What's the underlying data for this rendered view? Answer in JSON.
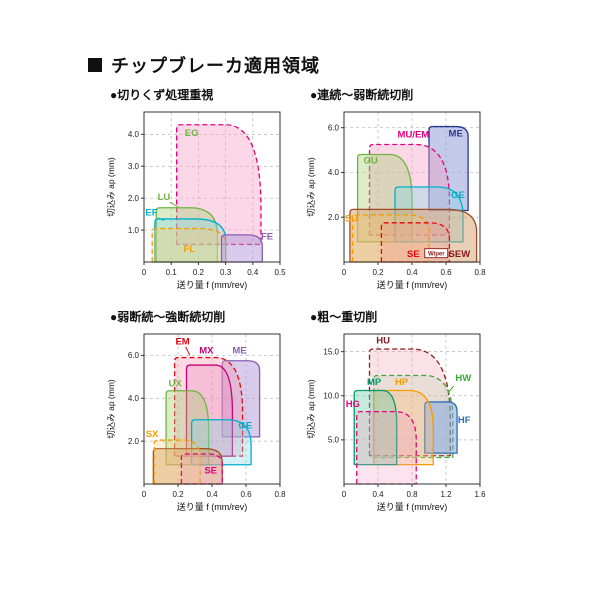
{
  "title": "チップブレーカ適用領域",
  "chart_data": [
    {
      "type": "area",
      "subtitle": "●切りくず処理重視",
      "xlabel": "送り量 f (mm/rev)",
      "ylabel": "切込み ap (mm)",
      "xlim": [
        0,
        0.5
      ],
      "ylim": [
        0,
        4.7
      ],
      "x_ticks": [
        0,
        0.1,
        0.2,
        0.3,
        0.4,
        0.5
      ],
      "y_ticks": [
        1.0,
        2.0,
        3.0,
        4.0
      ],
      "grid": "dashed",
      "regions": [
        {
          "name": "EG",
          "label": "EG",
          "label_color": "#6fb43f",
          "label_pos": [
            0.15,
            3.95
          ],
          "stroke": "#e5007d",
          "dash": true,
          "fill": "rgba(244,154,194,0.40)",
          "x0": 0.12,
          "x1": 0.43,
          "y0": 0.55,
          "y1": 4.3,
          "trx": 0.13,
          "try": 2.6
        },
        {
          "name": "LU",
          "label": "LU",
          "label_color": "#6fb43f",
          "label_pos": [
            0.05,
            1.95
          ],
          "leader": [
            [
              0.095,
              1.88
            ],
            [
              0.125,
              1.72
            ]
          ],
          "stroke": "#6fb43f",
          "dash": false,
          "fill": "rgba(168,208,120,0.40)",
          "x0": 0.045,
          "x1": 0.27,
          "y0": 0,
          "y1": 1.7,
          "trx": 0.1,
          "try": 0.85
        },
        {
          "name": "EF",
          "label": "EF",
          "label_color": "#00b0c8",
          "label_pos": [
            0.005,
            1.45
          ],
          "leader": [
            [
              0.05,
              1.38
            ],
            [
              0.075,
              1.3
            ]
          ],
          "stroke": "#00b0c8",
          "dash": false,
          "fill": "rgba(130,215,228,0.35)",
          "x0": 0.04,
          "x1": 0.3,
          "y0": 0,
          "y1": 1.35,
          "trx": 0.11,
          "try": 0.65
        },
        {
          "name": "FL",
          "label": "FL",
          "label_color": "#f59c00",
          "label_pos": [
            0.145,
            0.32
          ],
          "stroke": "#f59c00",
          "dash": true,
          "fill": "rgba(252,205,120,0.35)",
          "x0": 0.03,
          "x1": 0.3,
          "y0": 0,
          "y1": 1.05,
          "trx": 0.1,
          "try": 0.5
        },
        {
          "name": "FE",
          "label": "FE",
          "label_color": "#8a5fb0",
          "label_pos": [
            0.43,
            0.7
          ],
          "stroke": "#8a5fb0",
          "dash": false,
          "fill": "rgba(178,152,216,0.50)",
          "x0": 0.285,
          "x1": 0.435,
          "y0": 0,
          "y1": 0.85,
          "trx": 0.055,
          "try": 0.35
        }
      ]
    },
    {
      "type": "area",
      "subtitle": "●連続～弱断続切削",
      "xlabel": "送り量 f (mm/rev)",
      "ylabel": "切込み ap (mm)",
      "xlim": [
        0,
        0.8
      ],
      "ylim": [
        0,
        6.7
      ],
      "x_ticks": [
        0,
        0.2,
        0.4,
        0.6,
        0.8
      ],
      "y_ticks": [
        2.0,
        4.0,
        6.0
      ],
      "grid": "dashed",
      "regions": [
        {
          "name": "ME",
          "label": "ME",
          "label_color": "#2b3990",
          "label_pos": [
            0.615,
            5.6
          ],
          "stroke": "#2b3990",
          "dash": false,
          "fill": "rgba(148,158,216,0.55)",
          "x0": 0.5,
          "x1": 0.73,
          "y0": 2.3,
          "y1": 6.05,
          "trx": 0.07,
          "try": 0.45
        },
        {
          "name": "MU/EM",
          "label": "MU/EM",
          "label_color": "#e5007d",
          "label_pos": [
            0.315,
            5.55
          ],
          "stroke": "#e5007d",
          "dash": true,
          "fill": "rgba(244,154,194,0.40)",
          "x0": 0.15,
          "x1": 0.62,
          "y0": 1.2,
          "y1": 5.25,
          "trx": 0.2,
          "try": 2.5
        },
        {
          "name": "GU",
          "label": "GU",
          "label_color": "#6fb43f",
          "label_pos": [
            0.115,
            4.4
          ],
          "stroke": "#6fb43f",
          "dash": false,
          "fill": "rgba(168,208,120,0.40)",
          "x0": 0.08,
          "x1": 0.4,
          "y0": 0.9,
          "y1": 4.8,
          "trx": 0.13,
          "try": 2.1
        },
        {
          "name": "GE",
          "label": "GE",
          "label_color": "#00b0c8",
          "label_pos": [
            0.63,
            2.85
          ],
          "stroke": "#00b0c8",
          "dash": false,
          "fill": "rgba(130,215,228,0.35)",
          "x0": 0.3,
          "x1": 0.7,
          "y0": 0.9,
          "y1": 3.35,
          "trx": 0.15,
          "try": 1.3
        },
        {
          "name": "SEW",
          "label": "SEW",
          "label_color": "#8b1a1a",
          "label_pos": [
            0.615,
            0.22
          ],
          "badge": {
            "text": "Wiper",
            "x": 0.475,
            "y": 0.26
          },
          "stroke": "#a14b23",
          "dash": false,
          "fill": "rgba(212,160,110,0.50)",
          "x0": 0.035,
          "x1": 0.78,
          "y0": 0,
          "y1": 2.35,
          "trx": 0.17,
          "try": 1.0
        },
        {
          "name": "SU",
          "label": "SU",
          "label_color": "#f59c00",
          "label_pos": [
            0.005,
            1.8
          ],
          "stroke": "#f59c00",
          "dash": true,
          "fill": "rgba(252,205,120,0.30)",
          "x0": 0.05,
          "x1": 0.5,
          "y0": 0,
          "y1": 2.1,
          "trx": 0.12,
          "try": 0.8
        },
        {
          "name": "SE",
          "label": "SE",
          "label_color": "#e30613",
          "label_pos": [
            0.37,
            0.22
          ],
          "stroke": "#e30613",
          "dash": true,
          "fill": "rgba(245,140,140,0.25)",
          "x0": 0.22,
          "x1": 0.62,
          "y0": 0,
          "y1": 1.75,
          "trx": 0.12,
          "try": 0.7
        }
      ]
    },
    {
      "type": "area",
      "subtitle": "●弱断続～強断続切削",
      "xlabel": "送り量 f (mm/rev)",
      "ylabel": "切込み ap (mm)",
      "xlim": [
        0,
        0.8
      ],
      "ylim": [
        0,
        7.0
      ],
      "x_ticks": [
        0,
        0.2,
        0.4,
        0.6,
        0.8
      ],
      "y_ticks": [
        2.0,
        4.0,
        6.0
      ],
      "grid": "dashed",
      "regions": [
        {
          "name": "ME",
          "label": "ME",
          "label_color": "#8a5fb0",
          "label_pos": [
            0.52,
            6.1
          ],
          "stroke": "#8a5fb0",
          "dash": false,
          "fill": "rgba(178,152,216,0.50)",
          "x0": 0.46,
          "x1": 0.68,
          "y0": 2.2,
          "y1": 5.75,
          "trx": 0.07,
          "try": 0.45
        },
        {
          "name": "EM",
          "label": "EM",
          "label_color": "#e30613",
          "label_pos": [
            0.185,
            6.5
          ],
          "leader": [
            [
              0.245,
              6.4
            ],
            [
              0.27,
              6.0
            ]
          ],
          "stroke": "#e30613",
          "dash": true,
          "fill": "rgba(246,150,170,0.35)",
          "x0": 0.18,
          "x1": 0.58,
          "y0": 1.3,
          "y1": 5.9,
          "trx": 0.16,
          "try": 2.6
        },
        {
          "name": "MX",
          "label": "MX",
          "label_color": "#c9007a",
          "label_pos": [
            0.325,
            6.1
          ],
          "stroke": "#c9007a",
          "dash": false,
          "fill": "rgba(235,130,190,0.30)",
          "x0": 0.25,
          "x1": 0.52,
          "y0": 1.3,
          "y1": 5.55,
          "trx": 0.1,
          "try": 2.2
        },
        {
          "name": "UX",
          "label": "UX",
          "label_color": "#6fb43f",
          "label_pos": [
            0.145,
            4.55
          ],
          "stroke": "#6fb43f",
          "dash": false,
          "fill": "rgba(168,208,120,0.40)",
          "x0": 0.13,
          "x1": 0.38,
          "y0": 0.9,
          "y1": 4.35,
          "trx": 0.1,
          "try": 1.8
        },
        {
          "name": "GE",
          "label": "GE",
          "label_color": "#00b0c8",
          "label_pos": [
            0.555,
            2.6
          ],
          "stroke": "#00b0c8",
          "dash": false,
          "fill": "rgba(130,215,228,0.35)",
          "x0": 0.28,
          "x1": 0.63,
          "y0": 0.9,
          "y1": 3.0,
          "trx": 0.14,
          "try": 1.2
        },
        {
          "name": "s-base",
          "stroke": "#a14b23",
          "dash": false,
          "fill": "rgba(212,160,110,0.50)",
          "x0": 0.055,
          "x1": 0.46,
          "y0": 0,
          "y1": 1.65,
          "trx": 0.1,
          "try": 0.6
        },
        {
          "name": "SX",
          "label": "SX",
          "label_color": "#f59c00",
          "label_pos": [
            0.01,
            2.2
          ],
          "stroke": "#f59c00",
          "dash": true,
          "fill": "rgba(252,205,120,0.30)",
          "x0": 0.06,
          "x1": 0.33,
          "y0": 0,
          "y1": 2.05,
          "trx": 0.1,
          "try": 0.8
        },
        {
          "name": "SE",
          "label": "SE",
          "label_color": "#e5007d",
          "label_pos": [
            0.355,
            0.5
          ],
          "stroke": "#e5007d",
          "dash": true,
          "fill": "rgba(244,154,194,0.25)",
          "x0": 0.22,
          "x1": 0.46,
          "y0": 0,
          "y1": 1.4,
          "trx": 0.08,
          "try": 0.5
        }
      ]
    },
    {
      "type": "area",
      "subtitle": "●粗～重切削",
      "xlabel": "送り量 f (mm/rev)",
      "ylabel": "切込み ap (mm)",
      "xlim": [
        0,
        1.6
      ],
      "ylim": [
        0,
        17.0
      ],
      "x_ticks": [
        0,
        0.4,
        0.8,
        1.2,
        1.6
      ],
      "y_ticks": [
        5.0,
        10.0,
        15.0
      ],
      "grid": "dashed",
      "regions": [
        {
          "name": "HU",
          "label": "HU",
          "label_color": "#8b1a1a",
          "label_pos": [
            0.38,
            15.9
          ],
          "stroke": "#8b1a1a",
          "dash": true,
          "fill": "rgba(244,170,190,0.35)",
          "x0": 0.3,
          "x1": 1.25,
          "y0": 3.2,
          "y1": 15.3,
          "trx": 0.45,
          "try": 8.0
        },
        {
          "name": "HW",
          "label": "HW",
          "label_color": "#3aaa35",
          "label_pos": [
            1.31,
            11.7
          ],
          "leader": [
            [
              1.29,
              11.1
            ],
            [
              1.22,
              10.3
            ]
          ],
          "stroke": "#3aaa35",
          "dash": true,
          "fill": "rgba(150,210,140,0.18)",
          "x0": 0.35,
          "x1": 1.28,
          "y0": 3.0,
          "y1": 12.3,
          "trx": 0.33,
          "try": 5.0
        },
        {
          "name": "HF",
          "label": "HF",
          "label_color": "#2f6eb5",
          "label_pos": [
            1.34,
            6.9
          ],
          "stroke": "#2f6eb5",
          "dash": false,
          "fill": "rgba(130,165,220,0.55)",
          "x0": 0.95,
          "x1": 1.33,
          "y0": 3.5,
          "y1": 9.3,
          "trx": 0.11,
          "try": 1.1
        },
        {
          "name": "HP",
          "label": "HP",
          "label_color": "#f59c00",
          "label_pos": [
            0.6,
            11.2
          ],
          "stroke": "#f59c00",
          "dash": false,
          "fill": "rgba(252,190,120,0.35)",
          "x0": 0.35,
          "x1": 1.05,
          "y0": 2.2,
          "y1": 10.6,
          "trx": 0.28,
          "try": 4.3
        },
        {
          "name": "MP",
          "label": "MP",
          "label_color": "#009a6c",
          "label_pos": [
            0.27,
            11.2
          ],
          "stroke": "#009a6c",
          "dash": false,
          "fill": "rgba(110,205,170,0.40)",
          "x0": 0.12,
          "x1": 0.62,
          "y0": 2.2,
          "y1": 10.6,
          "trx": 0.17,
          "try": 3.8
        },
        {
          "name": "HG",
          "label": "HG",
          "label_color": "#e5007d",
          "label_pos": [
            0.02,
            8.7
          ],
          "stroke": "#e5007d",
          "dash": true,
          "fill": "rgba(244,154,194,0.28)",
          "x0": 0.15,
          "x1": 0.85,
          "y0": 0,
          "y1": 8.2,
          "trx": 0.24,
          "try": 3.3
        }
      ]
    }
  ]
}
